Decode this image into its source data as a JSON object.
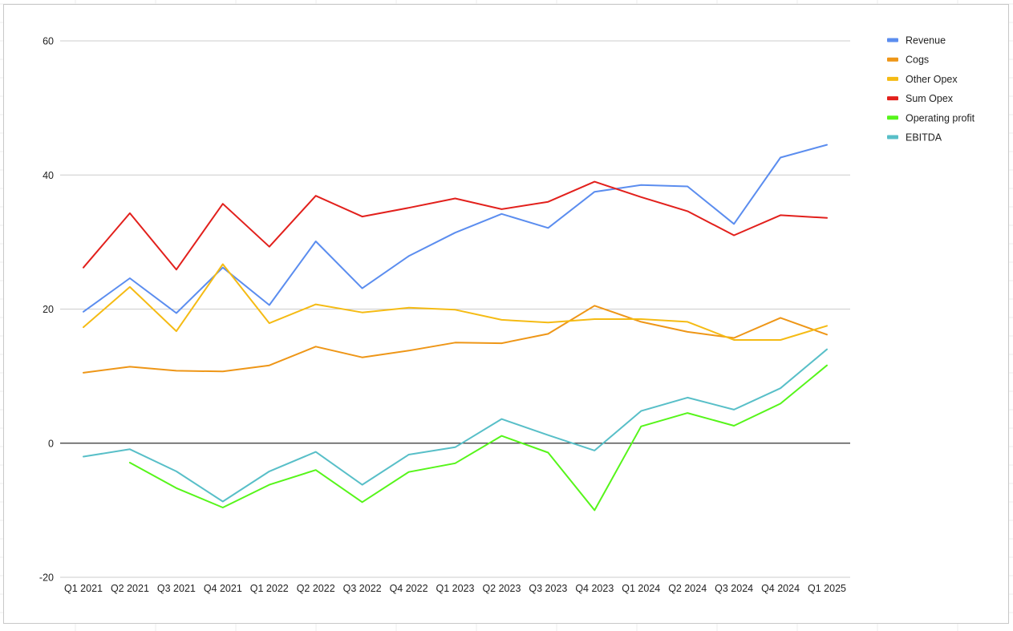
{
  "chart_data": {
    "type": "line",
    "title": "",
    "xlabel": "",
    "ylabel": "",
    "categories": [
      "Q1 2021",
      "Q2 2021",
      "Q3 2021",
      "Q4 2021",
      "Q1 2022",
      "Q2 2022",
      "Q3 2022",
      "Q4 2022",
      "Q1 2023",
      "Q2 2023",
      "Q3 2023",
      "Q4 2023",
      "Q1 2024",
      "Q2 2024",
      "Q3 2024",
      "Q4 2024",
      "Q1 2025"
    ],
    "ylim": [
      -20,
      60
    ],
    "yticks": [
      "-20",
      "0",
      "20",
      "40",
      "60"
    ],
    "ytick_values": [
      -20,
      0,
      20,
      40,
      60
    ],
    "grid": true,
    "zero_line": true,
    "legend_position": "right",
    "series": [
      {
        "name": "Revenue",
        "color": "#5b8def",
        "values": [
          19.6,
          24.6,
          19.4,
          26.2,
          20.6,
          30.1,
          23.1,
          27.9,
          31.4,
          34.2,
          32.1,
          37.5,
          38.5,
          38.3,
          32.7,
          42.6,
          44.5
        ]
      },
      {
        "name": "Cogs",
        "color": "#ee9617",
        "values": [
          10.5,
          11.4,
          10.8,
          10.7,
          11.6,
          14.4,
          12.8,
          13.8,
          15.0,
          14.9,
          16.3,
          20.5,
          18.1,
          16.6,
          15.7,
          18.7,
          16.2
        ]
      },
      {
        "name": "Other Opex",
        "color": "#f5bb14",
        "values": [
          17.3,
          23.3,
          16.7,
          26.7,
          17.9,
          20.7,
          19.5,
          20.2,
          19.9,
          18.4,
          18.0,
          18.5,
          18.5,
          18.1,
          15.4,
          15.4,
          17.5
        ]
      },
      {
        "name": "Sum Opex",
        "color": "#e2201c",
        "values": [
          26.2,
          34.3,
          25.9,
          35.7,
          29.3,
          36.9,
          33.8,
          35.1,
          36.5,
          34.9,
          36.0,
          39.0,
          36.7,
          34.6,
          31.0,
          34.0,
          33.6
        ]
      },
      {
        "name": "Operating profit",
        "color": "#56f51a",
        "values": [
          null,
          -2.9,
          -6.7,
          -9.6,
          -6.2,
          -4.0,
          -8.8,
          -4.3,
          -3.0,
          1.1,
          -1.4,
          -10.0,
          2.5,
          4.5,
          2.6,
          5.9,
          11.6
        ]
      },
      {
        "name": "EBITDA",
        "color": "#58bfc8",
        "values": [
          -2.0,
          -0.9,
          -4.2,
          -8.7,
          -4.2,
          -1.3,
          -6.2,
          -1.7,
          -0.6,
          3.6,
          1.2,
          -1.1,
          4.8,
          6.8,
          5.0,
          8.2,
          14.0
        ]
      }
    ]
  }
}
